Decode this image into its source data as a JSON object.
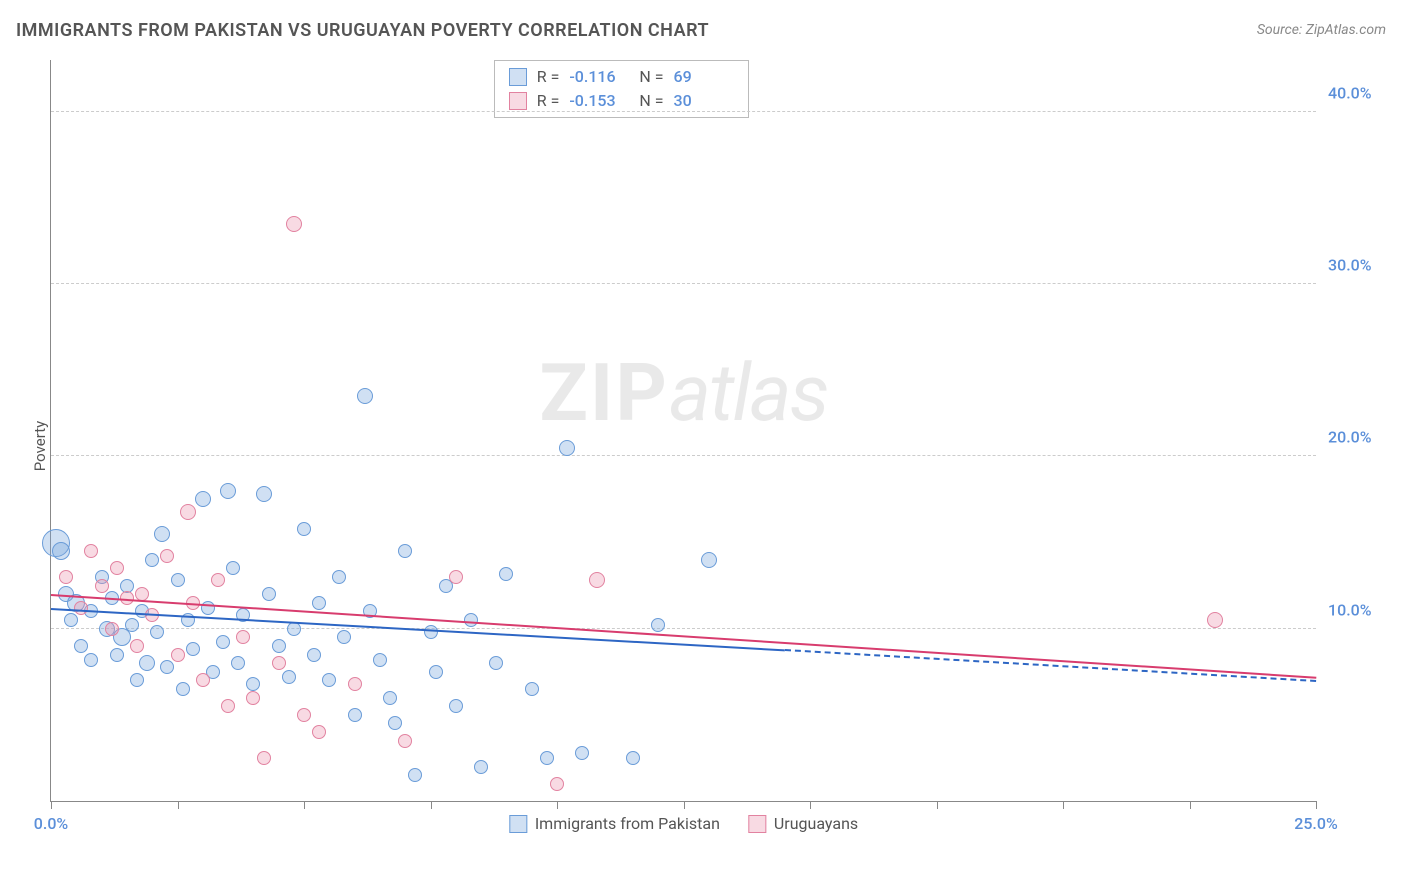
{
  "title": "IMMIGRANTS FROM PAKISTAN VS URUGUAYAN POVERTY CORRELATION CHART",
  "source": "Source: ZipAtlas.com",
  "watermark_zip": "ZIP",
  "watermark_atlas": "atlas",
  "ylabel": "Poverty",
  "chart": {
    "type": "scatter",
    "xlim": [
      0,
      25
    ],
    "ylim": [
      0,
      43
    ],
    "background_color": "#ffffff",
    "grid_color": "#cccccc",
    "axis_color": "#888888",
    "ytick_positions": [
      10,
      20,
      30,
      40
    ],
    "ytick_labels": [
      "10.0%",
      "20.0%",
      "30.0%",
      "40.0%"
    ],
    "xtick_positions": [
      0,
      2.5,
      5,
      7.5,
      10,
      12.5,
      15,
      17.5,
      20,
      22.5,
      25
    ],
    "xtick_label_first": "0.0%",
    "xtick_label_last": "25.0%",
    "tick_label_color": "#5b8fd9",
    "tick_label_fontsize": 16
  },
  "series": [
    {
      "name": "Immigrants from Pakistan",
      "label_legend": "Immigrants from Pakistan",
      "fill_color": "rgba(120,165,220,0.35)",
      "stroke_color": "#6a9cd8",
      "trend_color": "#2d66c4",
      "trend_start": [
        0,
        11.2
      ],
      "trend_end_solid": [
        14.5,
        8.8
      ],
      "trend_end_dashed": [
        25,
        7.0
      ],
      "R": "-0.116",
      "N": "69",
      "points": [
        {
          "x": 0.1,
          "y": 15.0,
          "r": 14
        },
        {
          "x": 0.2,
          "y": 14.5,
          "r": 9
        },
        {
          "x": 0.3,
          "y": 12.0,
          "r": 8
        },
        {
          "x": 0.4,
          "y": 10.5,
          "r": 7
        },
        {
          "x": 0.5,
          "y": 11.5,
          "r": 9
        },
        {
          "x": 0.6,
          "y": 9.0,
          "r": 7
        },
        {
          "x": 0.8,
          "y": 11.0,
          "r": 7
        },
        {
          "x": 0.8,
          "y": 8.2,
          "r": 7
        },
        {
          "x": 1.0,
          "y": 13.0,
          "r": 7
        },
        {
          "x": 1.1,
          "y": 10.0,
          "r": 8
        },
        {
          "x": 1.2,
          "y": 11.8,
          "r": 7
        },
        {
          "x": 1.3,
          "y": 8.5,
          "r": 7
        },
        {
          "x": 1.4,
          "y": 9.5,
          "r": 9
        },
        {
          "x": 1.5,
          "y": 12.5,
          "r": 7
        },
        {
          "x": 1.6,
          "y": 10.2,
          "r": 7
        },
        {
          "x": 1.7,
          "y": 7.0,
          "r": 7
        },
        {
          "x": 1.8,
          "y": 11.0,
          "r": 7
        },
        {
          "x": 1.9,
          "y": 8.0,
          "r": 8
        },
        {
          "x": 2.0,
          "y": 14.0,
          "r": 7
        },
        {
          "x": 2.1,
          "y": 9.8,
          "r": 7
        },
        {
          "x": 2.2,
          "y": 15.5,
          "r": 8
        },
        {
          "x": 2.3,
          "y": 7.8,
          "r": 7
        },
        {
          "x": 2.5,
          "y": 12.8,
          "r": 7
        },
        {
          "x": 2.6,
          "y": 6.5,
          "r": 7
        },
        {
          "x": 2.7,
          "y": 10.5,
          "r": 7
        },
        {
          "x": 2.8,
          "y": 8.8,
          "r": 7
        },
        {
          "x": 3.0,
          "y": 17.5,
          "r": 8
        },
        {
          "x": 3.1,
          "y": 11.2,
          "r": 7
        },
        {
          "x": 3.2,
          "y": 7.5,
          "r": 7
        },
        {
          "x": 3.4,
          "y": 9.2,
          "r": 7
        },
        {
          "x": 3.5,
          "y": 18.0,
          "r": 8
        },
        {
          "x": 3.6,
          "y": 13.5,
          "r": 7
        },
        {
          "x": 3.7,
          "y": 8.0,
          "r": 7
        },
        {
          "x": 3.8,
          "y": 10.8,
          "r": 7
        },
        {
          "x": 4.0,
          "y": 6.8,
          "r": 7
        },
        {
          "x": 4.2,
          "y": 17.8,
          "r": 8
        },
        {
          "x": 4.3,
          "y": 12.0,
          "r": 7
        },
        {
          "x": 4.5,
          "y": 9.0,
          "r": 7
        },
        {
          "x": 4.7,
          "y": 7.2,
          "r": 7
        },
        {
          "x": 4.8,
          "y": 10.0,
          "r": 7
        },
        {
          "x": 5.0,
          "y": 15.8,
          "r": 7
        },
        {
          "x": 5.2,
          "y": 8.5,
          "r": 7
        },
        {
          "x": 5.3,
          "y": 11.5,
          "r": 7
        },
        {
          "x": 5.5,
          "y": 7.0,
          "r": 7
        },
        {
          "x": 5.7,
          "y": 13.0,
          "r": 7
        },
        {
          "x": 5.8,
          "y": 9.5,
          "r": 7
        },
        {
          "x": 6.0,
          "y": 5.0,
          "r": 7
        },
        {
          "x": 6.2,
          "y": 23.5,
          "r": 8
        },
        {
          "x": 6.3,
          "y": 11.0,
          "r": 7
        },
        {
          "x": 6.5,
          "y": 8.2,
          "r": 7
        },
        {
          "x": 6.7,
          "y": 6.0,
          "r": 7
        },
        {
          "x": 6.8,
          "y": 4.5,
          "r": 7
        },
        {
          "x": 7.0,
          "y": 14.5,
          "r": 7
        },
        {
          "x": 7.2,
          "y": 1.5,
          "r": 7
        },
        {
          "x": 7.5,
          "y": 9.8,
          "r": 7
        },
        {
          "x": 7.6,
          "y": 7.5,
          "r": 7
        },
        {
          "x": 7.8,
          "y": 12.5,
          "r": 7
        },
        {
          "x": 8.0,
          "y": 5.5,
          "r": 7
        },
        {
          "x": 8.3,
          "y": 10.5,
          "r": 7
        },
        {
          "x": 8.5,
          "y": 2.0,
          "r": 7
        },
        {
          "x": 8.8,
          "y": 8.0,
          "r": 7
        },
        {
          "x": 9.0,
          "y": 13.2,
          "r": 7
        },
        {
          "x": 9.5,
          "y": 6.5,
          "r": 7
        },
        {
          "x": 9.8,
          "y": 2.5,
          "r": 7
        },
        {
          "x": 10.2,
          "y": 20.5,
          "r": 8
        },
        {
          "x": 10.5,
          "y": 2.8,
          "r": 7
        },
        {
          "x": 11.5,
          "y": 2.5,
          "r": 7
        },
        {
          "x": 12.0,
          "y": 10.2,
          "r": 7
        },
        {
          "x": 13.0,
          "y": 14.0,
          "r": 8
        }
      ]
    },
    {
      "name": "Uruguayans",
      "label_legend": "Uruguayans",
      "fill_color": "rgba(235,150,175,0.35)",
      "stroke_color": "#e282a0",
      "trend_color": "#d83c6e",
      "trend_start": [
        0,
        12.0
      ],
      "trend_end_solid": [
        25,
        7.2
      ],
      "trend_end_dashed": null,
      "R": "-0.153",
      "N": "30",
      "points": [
        {
          "x": 0.3,
          "y": 13.0,
          "r": 7
        },
        {
          "x": 0.6,
          "y": 11.2,
          "r": 7
        },
        {
          "x": 0.8,
          "y": 14.5,
          "r": 7
        },
        {
          "x": 1.0,
          "y": 12.5,
          "r": 7
        },
        {
          "x": 1.2,
          "y": 10.0,
          "r": 7
        },
        {
          "x": 1.3,
          "y": 13.5,
          "r": 7
        },
        {
          "x": 1.5,
          "y": 11.8,
          "r": 7
        },
        {
          "x": 1.7,
          "y": 9.0,
          "r": 7
        },
        {
          "x": 1.8,
          "y": 12.0,
          "r": 7
        },
        {
          "x": 2.0,
          "y": 10.8,
          "r": 7
        },
        {
          "x": 2.3,
          "y": 14.2,
          "r": 7
        },
        {
          "x": 2.5,
          "y": 8.5,
          "r": 7
        },
        {
          "x": 2.7,
          "y": 16.8,
          "r": 8
        },
        {
          "x": 2.8,
          "y": 11.5,
          "r": 7
        },
        {
          "x": 3.0,
          "y": 7.0,
          "r": 7
        },
        {
          "x": 3.3,
          "y": 12.8,
          "r": 7
        },
        {
          "x": 3.5,
          "y": 5.5,
          "r": 7
        },
        {
          "x": 3.8,
          "y": 9.5,
          "r": 7
        },
        {
          "x": 4.0,
          "y": 6.0,
          "r": 7
        },
        {
          "x": 4.2,
          "y": 2.5,
          "r": 7
        },
        {
          "x": 4.5,
          "y": 8.0,
          "r": 7
        },
        {
          "x": 4.8,
          "y": 33.5,
          "r": 8
        },
        {
          "x": 5.0,
          "y": 5.0,
          "r": 7
        },
        {
          "x": 5.3,
          "y": 4.0,
          "r": 7
        },
        {
          "x": 6.0,
          "y": 6.8,
          "r": 7
        },
        {
          "x": 7.0,
          "y": 3.5,
          "r": 7
        },
        {
          "x": 8.0,
          "y": 13.0,
          "r": 7
        },
        {
          "x": 10.0,
          "y": 1.0,
          "r": 7
        },
        {
          "x": 10.8,
          "y": 12.8,
          "r": 8
        },
        {
          "x": 23.0,
          "y": 10.5,
          "r": 8
        }
      ]
    }
  ],
  "legend_corr_rows": [
    {
      "R_label": "R =",
      "N_label": "N ="
    },
    {
      "R_label": "R =",
      "N_label": "N ="
    }
  ]
}
